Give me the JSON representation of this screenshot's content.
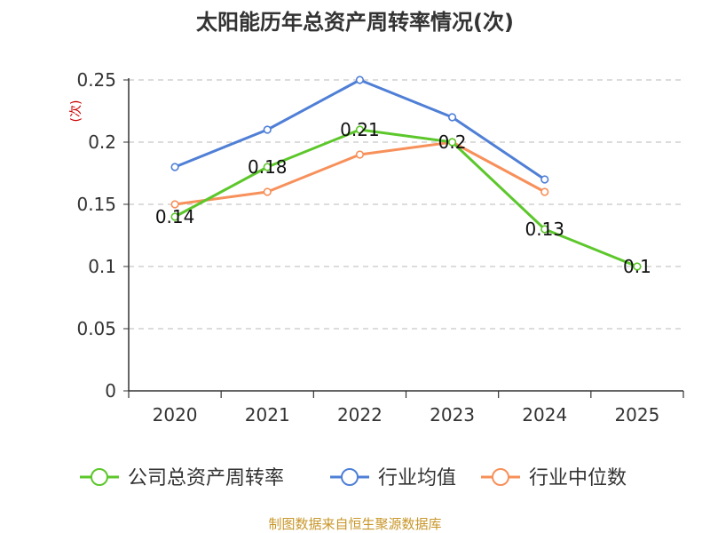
{
  "chart_data": {
    "type": "line",
    "title": "太阳能历年总资产周转率情况(次)",
    "ylabel": "(次)",
    "xlabel": "",
    "categories": [
      "2020",
      "2021",
      "2022",
      "2023",
      "2024",
      "2025"
    ],
    "ylim": [
      0,
      0.25
    ],
    "yticks": [
      0,
      0.05,
      0.1,
      0.15,
      0.2,
      0.25
    ],
    "ytick_labels": [
      "0",
      "0.05",
      "0.1",
      "0.15",
      "0.2",
      "0.25"
    ],
    "grid": true,
    "legend_position": "bottom",
    "series": [
      {
        "name": "公司总资产周转率",
        "color": "#5cc72b",
        "values": [
          0.14,
          0.18,
          0.21,
          0.2,
          0.13,
          0.1
        ],
        "labels": [
          "0.14",
          "0.18",
          "0.21",
          "0.2",
          "0.13",
          "0.1"
        ]
      },
      {
        "name": "行业均值",
        "color": "#4f7fd6",
        "values": [
          0.18,
          0.21,
          0.25,
          0.22,
          0.17,
          null
        ]
      },
      {
        "name": "行业中位数",
        "color": "#f7905a",
        "values": [
          0.15,
          0.16,
          0.19,
          0.2,
          0.16,
          null
        ]
      }
    ],
    "source": "制图数据来自恒生聚源数据库"
  }
}
